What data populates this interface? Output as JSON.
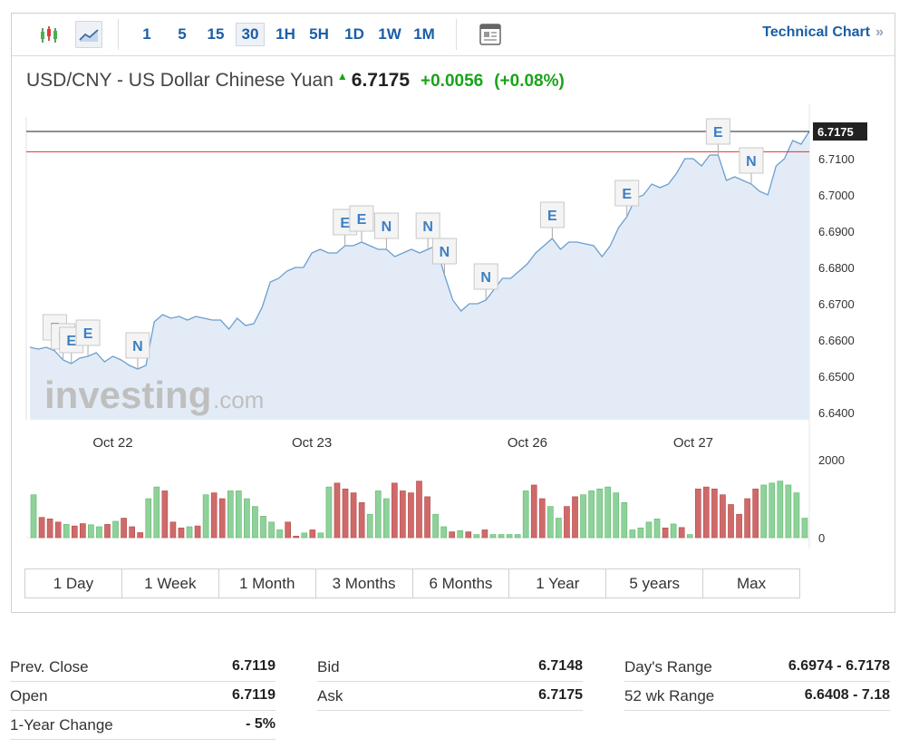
{
  "toolbar": {
    "icons": [
      "candlestick-icon",
      "area-chart-icon",
      "news-icon"
    ],
    "timeframes": [
      "1",
      "5",
      "15",
      "30",
      "1H",
      "5H",
      "1D",
      "1W",
      "1M"
    ],
    "selected_timeframe": "30",
    "technical_link": "Technical Chart",
    "technical_chevron": "»"
  },
  "quote": {
    "name": "USD/CNY - US Dollar Chinese Yuan",
    "price": "6.7175",
    "change": "+0.0056",
    "change_pct": "(+0.08%)",
    "up_color": "#1aa31a"
  },
  "watermark": {
    "brand": "investing",
    "suffix": ".com"
  },
  "chart_data": {
    "type": "area",
    "price_axis": {
      "ticks": [
        "6.7100",
        "6.7000",
        "6.6900",
        "6.6800",
        "6.6700",
        "6.6600",
        "6.6500",
        "6.6400"
      ],
      "ylim": [
        6.638,
        6.721
      ]
    },
    "current_price_label": "6.7175",
    "current_price": 6.7175,
    "prev_close": 6.7119,
    "date_labels": [
      "Oct 22",
      "Oct 23",
      "Oct 26",
      "Oct 27"
    ],
    "price_series": [
      6.658,
      6.6575,
      6.658,
      6.657,
      6.6545,
      6.6535,
      6.655,
      6.6555,
      6.6565,
      6.654,
      6.6555,
      6.6545,
      6.653,
      6.652,
      6.653,
      6.665,
      6.667,
      6.666,
      6.6665,
      6.6655,
      6.6665,
      6.666,
      6.6655,
      6.6655,
      6.663,
      6.666,
      6.664,
      6.6645,
      6.669,
      6.676,
      6.677,
      6.679,
      6.68,
      6.68,
      6.684,
      6.685,
      6.684,
      6.684,
      6.686,
      6.686,
      6.687,
      6.686,
      6.685,
      6.685,
      6.683,
      6.684,
      6.685,
      6.684,
      6.685,
      6.686,
      6.678,
      6.671,
      6.668,
      6.67,
      6.67,
      6.671,
      6.674,
      6.677,
      6.677,
      6.679,
      6.681,
      6.684,
      6.686,
      6.688,
      6.685,
      6.687,
      6.687,
      6.6865,
      6.686,
      6.683,
      6.686,
      6.691,
      6.694,
      6.699,
      6.7,
      6.703,
      6.702,
      6.703,
      6.706,
      6.71,
      6.71,
      6.708,
      6.711,
      6.711,
      6.704,
      6.705,
      6.704,
      6.703,
      6.701,
      6.7,
      6.708,
      6.71,
      6.715,
      6.714,
      6.7175
    ],
    "volume_axis": [
      "2000",
      "0"
    ],
    "volume_max": 2000,
    "volume_colors": {
      "up": "#8fd19a",
      "down": "#d06a6a"
    },
    "volumes": [
      [
        1100,
        1
      ],
      [
        520,
        0
      ],
      [
        480,
        0
      ],
      [
        400,
        0
      ],
      [
        340,
        1
      ],
      [
        300,
        0
      ],
      [
        360,
        0
      ],
      [
        330,
        1
      ],
      [
        280,
        1
      ],
      [
        340,
        0
      ],
      [
        420,
        1
      ],
      [
        500,
        0
      ],
      [
        280,
        0
      ],
      [
        130,
        0
      ],
      [
        1000,
        1
      ],
      [
        1300,
        1
      ],
      [
        1200,
        0
      ],
      [
        400,
        0
      ],
      [
        250,
        0
      ],
      [
        280,
        1
      ],
      [
        300,
        0
      ],
      [
        1100,
        1
      ],
      [
        1150,
        0
      ],
      [
        1000,
        0
      ],
      [
        1200,
        1
      ],
      [
        1200,
        1
      ],
      [
        1000,
        1
      ],
      [
        800,
        1
      ],
      [
        550,
        1
      ],
      [
        400,
        1
      ],
      [
        200,
        1
      ],
      [
        400,
        0
      ],
      [
        40,
        0
      ],
      [
        120,
        1
      ],
      [
        200,
        0
      ],
      [
        120,
        1
      ],
      [
        1300,
        1
      ],
      [
        1400,
        0
      ],
      [
        1250,
        0
      ],
      [
        1150,
        0
      ],
      [
        900,
        0
      ],
      [
        600,
        1
      ],
      [
        1200,
        1
      ],
      [
        1000,
        1
      ],
      [
        1400,
        0
      ],
      [
        1200,
        0
      ],
      [
        1150,
        0
      ],
      [
        1450,
        0
      ],
      [
        1050,
        0
      ],
      [
        600,
        1
      ],
      [
        280,
        1
      ],
      [
        150,
        0
      ],
      [
        180,
        1
      ],
      [
        150,
        0
      ],
      [
        80,
        1
      ],
      [
        200,
        0
      ],
      [
        80,
        1
      ],
      [
        80,
        1
      ],
      [
        80,
        1
      ],
      [
        80,
        1
      ],
      [
        1200,
        1
      ],
      [
        1350,
        0
      ],
      [
        1000,
        0
      ],
      [
        800,
        1
      ],
      [
        500,
        1
      ],
      [
        800,
        0
      ],
      [
        1050,
        0
      ],
      [
        1100,
        1
      ],
      [
        1200,
        1
      ],
      [
        1250,
        1
      ],
      [
        1300,
        1
      ],
      [
        1150,
        1
      ],
      [
        900,
        1
      ],
      [
        200,
        1
      ],
      [
        250,
        1
      ],
      [
        400,
        1
      ],
      [
        480,
        1
      ],
      [
        250,
        0
      ],
      [
        350,
        1
      ],
      [
        260,
        0
      ],
      [
        80,
        1
      ],
      [
        1250,
        0
      ],
      [
        1300,
        0
      ],
      [
        1250,
        0
      ],
      [
        1100,
        0
      ],
      [
        850,
        0
      ],
      [
        600,
        0
      ],
      [
        1000,
        0
      ],
      [
        1250,
        0
      ],
      [
        1350,
        1
      ],
      [
        1400,
        1
      ],
      [
        1450,
        1
      ],
      [
        1350,
        1
      ],
      [
        1150,
        1
      ],
      [
        500,
        1
      ]
    ],
    "event_markers": [
      {
        "i": 3,
        "label": "E"
      },
      {
        "i": 4,
        "label": "E"
      },
      {
        "i": 5,
        "label": "E"
      },
      {
        "i": 7,
        "label": "E"
      },
      {
        "i": 13,
        "label": "N"
      },
      {
        "i": 38,
        "label": "E"
      },
      {
        "i": 40,
        "label": "E"
      },
      {
        "i": 43,
        "label": "N"
      },
      {
        "i": 48,
        "label": "N"
      },
      {
        "i": 50,
        "label": "N"
      },
      {
        "i": 55,
        "label": "N"
      },
      {
        "i": 63,
        "label": "E"
      },
      {
        "i": 72,
        "label": "E"
      },
      {
        "i": 83,
        "label": "E"
      },
      {
        "i": 87,
        "label": "N"
      }
    ]
  },
  "range_tabs": [
    "1 Day",
    "1 Week",
    "1 Month",
    "3 Months",
    "6 Months",
    "1 Year",
    "5 years",
    "Max"
  ],
  "stats": {
    "col1": [
      {
        "label": "Prev. Close",
        "value": "6.7119"
      },
      {
        "label": "Open",
        "value": "6.7119"
      },
      {
        "label": "1-Year Change",
        "value": "- 5%"
      }
    ],
    "col2": [
      {
        "label": "Bid",
        "value": "6.7148"
      },
      {
        "label": "Ask",
        "value": "6.7175"
      }
    ],
    "col3": [
      {
        "label": "Day's Range",
        "value": "6.6974 - 6.7178"
      },
      {
        "label": "52 wk Range",
        "value": "6.6408 - 7.18"
      }
    ]
  }
}
